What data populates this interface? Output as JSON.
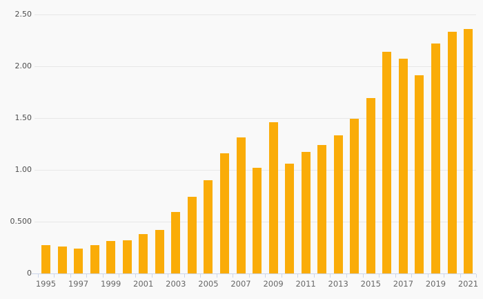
{
  "chart_data": {
    "type": "bar",
    "title": "",
    "xlabel": "",
    "ylabel": "",
    "categories": [
      "1995",
      "1996",
      "1997",
      "1998",
      "1999",
      "2000",
      "2001",
      "2002",
      "2003",
      "2004",
      "2005",
      "2006",
      "2007",
      "2008",
      "2009",
      "2010",
      "2011",
      "2012",
      "2013",
      "2014",
      "2015",
      "2016",
      "2017",
      "2018",
      "2019",
      "2020",
      "2021"
    ],
    "values": [
      0.27,
      0.26,
      0.24,
      0.27,
      0.31,
      0.32,
      0.38,
      0.42,
      0.59,
      0.74,
      0.9,
      1.16,
      1.31,
      1.02,
      1.46,
      1.06,
      1.17,
      1.24,
      1.33,
      1.49,
      1.69,
      2.14,
      2.07,
      1.91,
      2.22,
      2.33,
      2.36
    ],
    "ylim": [
      0,
      2.5
    ],
    "y_tick_values": [
      2.5,
      2.0,
      1.5,
      1.0,
      0.5,
      0
    ],
    "y_tick_labels": [
      "2.50",
      "2.00",
      "1.50",
      "1.00",
      "0.500",
      "0"
    ],
    "x_tick_labels": [
      "1995",
      "1997",
      "1999",
      "2001",
      "2003",
      "2005",
      "2007",
      "2009",
      "2011",
      "2013",
      "2015",
      "2017",
      "2019",
      "2021"
    ],
    "grid": true,
    "legend": false
  },
  "style": {
    "bar_color": "#FAAC08",
    "grid_color": "#e7e7e7",
    "axis_color": "#ccd6eb",
    "y_label_color": "#4d4d4d",
    "x_label_color": "#666666",
    "background_color": "#f9f9f9"
  }
}
